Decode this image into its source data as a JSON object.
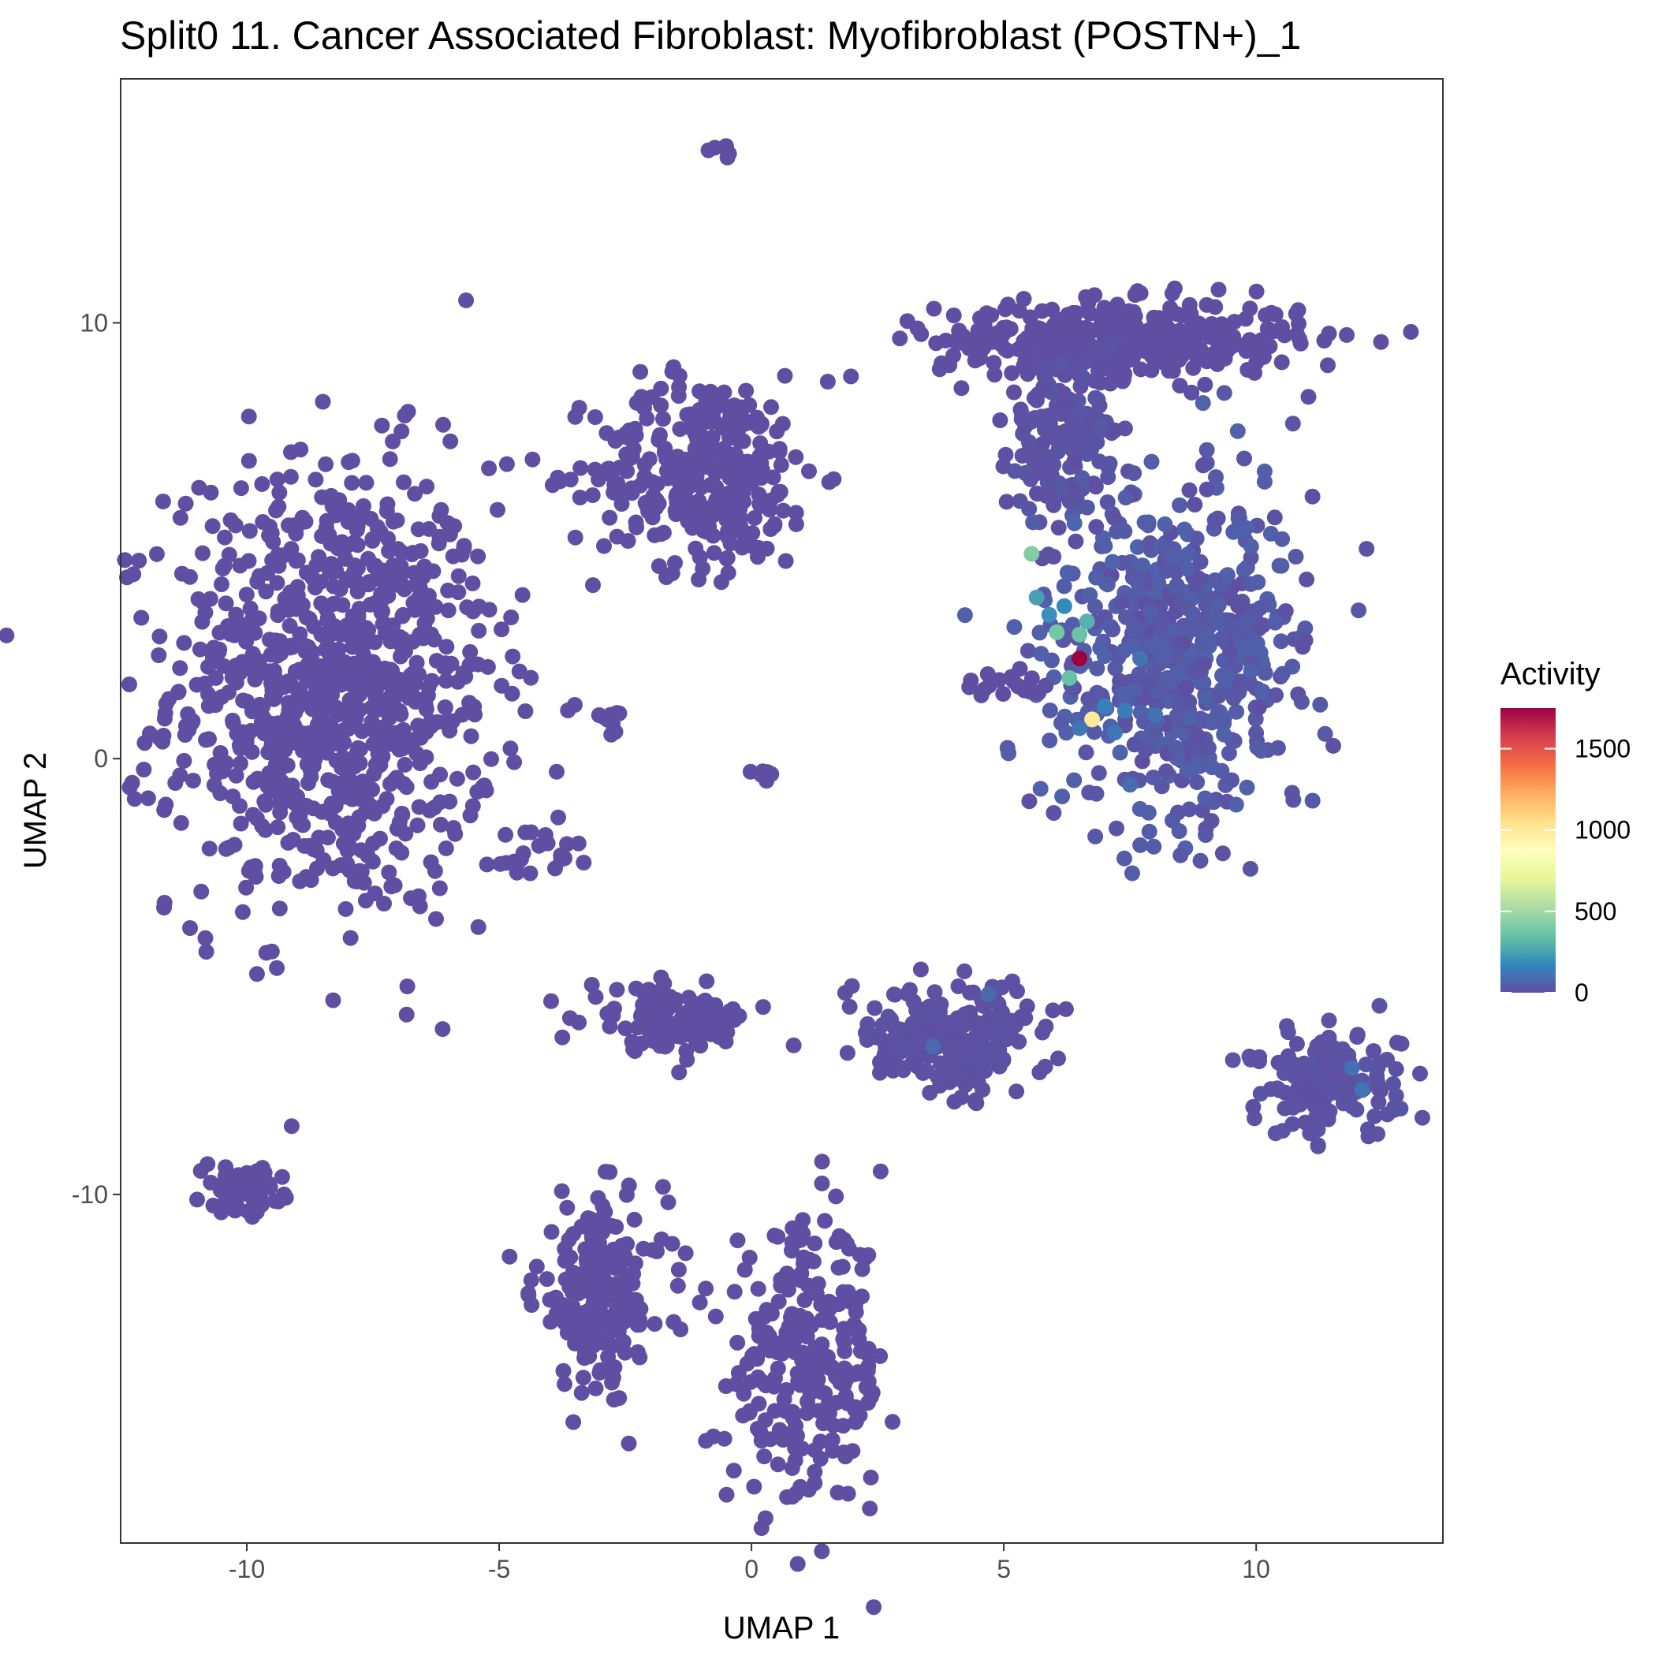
{
  "chart_data": {
    "type": "scatter",
    "title": "Split0 11. Cancer Associated Fibroblast: Myofibroblast (POSTN+)_1",
    "xlabel": "UMAP 1",
    "ylabel": "UMAP 2",
    "xlim": [
      -12.5,
      13.7
    ],
    "ylim": [
      -18,
      15.6
    ],
    "x_ticks": [
      -10,
      -5,
      0,
      5,
      10
    ],
    "x_tick_labels": [
      "-10",
      "-5",
      "0",
      "5",
      "10"
    ],
    "y_ticks": [
      -10,
      0,
      10
    ],
    "y_tick_labels": [
      "-10",
      "0",
      "10"
    ],
    "grid": false,
    "legend": {
      "title": "Activity",
      "placement": "right",
      "range": [
        0,
        1750
      ],
      "ticks": [
        0,
        500,
        1000,
        1500
      ],
      "tick_labels": [
        "0",
        "500",
        "1000",
        "1500"
      ],
      "colors": [
        "#5E4FA2",
        "#3288BD",
        "#66C2A5",
        "#ABDDA4",
        "#E6F598",
        "#FFFFBF",
        "#FEE08B",
        "#FDAE61",
        "#F46D43",
        "#D53E4F",
        "#9E0142"
      ]
    },
    "base_color": "#5E4FA2",
    "clusters": [
      {
        "name": "left-large",
        "cx": -8.3,
        "cy": 1.6,
        "sx": 1.6,
        "sy": 2.6,
        "n": 900,
        "value": 0
      },
      {
        "name": "top-center",
        "cx": -0.9,
        "cy": 6.6,
        "sx": 1.1,
        "sy": 1.1,
        "n": 320,
        "value": 0
      },
      {
        "name": "top-right",
        "cx": 7.3,
        "cy": 9.6,
        "sx": 1.8,
        "sy": 0.45,
        "n": 380,
        "value": 0
      },
      {
        "name": "right-stem",
        "cx": 6.1,
        "cy": 7.2,
        "sx": 0.55,
        "sy": 0.9,
        "n": 140,
        "value": 10
      },
      {
        "name": "right-large",
        "cx": 8.4,
        "cy": 2.4,
        "sx": 1.3,
        "sy": 1.9,
        "n": 620,
        "value": 30
      },
      {
        "name": "tiny-top",
        "cx": -0.55,
        "cy": 14.0,
        "sx": 0.12,
        "sy": 0.1,
        "n": 6,
        "value": 0
      },
      {
        "name": "lower-left-small",
        "cx": -10.1,
        "cy": -9.9,
        "sx": 0.4,
        "sy": 0.25,
        "n": 70,
        "value": 0
      },
      {
        "name": "bottom-left",
        "cx": -3.0,
        "cy": -12.3,
        "sx": 0.65,
        "sy": 1.1,
        "n": 200,
        "value": 0
      },
      {
        "name": "bottom-center",
        "cx": 1.1,
        "cy": -14.0,
        "sx": 0.8,
        "sy": 1.6,
        "n": 260,
        "value": 0
      },
      {
        "name": "mid-triangle",
        "cx": -1.6,
        "cy": -6.0,
        "sx": 0.8,
        "sy": 0.35,
        "n": 120,
        "value": 0
      },
      {
        "name": "mid-right",
        "cx": 4.0,
        "cy": -6.4,
        "sx": 0.9,
        "sy": 0.6,
        "n": 220,
        "value": 5
      },
      {
        "name": "far-right",
        "cx": 11.4,
        "cy": -7.5,
        "sx": 0.7,
        "sy": 0.6,
        "n": 170,
        "value": 10
      },
      {
        "name": "small-mid",
        "cx": 0.3,
        "cy": -0.35,
        "sx": 0.12,
        "sy": 0.1,
        "n": 8,
        "value": 0
      },
      {
        "name": "small-left-mid",
        "cx": -2.9,
        "cy": 0.9,
        "sx": 0.15,
        "sy": 0.2,
        "n": 10,
        "value": 0
      },
      {
        "name": "small-stream",
        "cx": -4.3,
        "cy": -2.2,
        "sx": 0.6,
        "sy": 0.25,
        "n": 22,
        "value": 0
      },
      {
        "name": "right-side-small",
        "cx": 5.0,
        "cy": 1.7,
        "sx": 0.4,
        "sy": 0.2,
        "n": 20,
        "value": 0
      }
    ],
    "highlighted_points": [
      {
        "x": 6.5,
        "y": 2.3,
        "value": 1750
      },
      {
        "x": 6.75,
        "y": 0.9,
        "value": 1000
      },
      {
        "x": 5.55,
        "y": 4.7,
        "value": 420
      },
      {
        "x": 6.5,
        "y": 2.85,
        "value": 360
      },
      {
        "x": 6.05,
        "y": 2.9,
        "value": 380
      },
      {
        "x": 6.3,
        "y": 1.85,
        "value": 350
      },
      {
        "x": 6.65,
        "y": 3.15,
        "value": 300
      },
      {
        "x": 5.65,
        "y": 3.7,
        "value": 250
      },
      {
        "x": 5.9,
        "y": 3.3,
        "value": 200
      },
      {
        "x": 6.2,
        "y": 3.5,
        "value": 180
      },
      {
        "x": 7.0,
        "y": 1.2,
        "value": 150
      },
      {
        "x": 7.4,
        "y": 1.1,
        "value": 140
      },
      {
        "x": 7.2,
        "y": 0.6,
        "value": 120
      },
      {
        "x": 6.5,
        "y": 0.7,
        "value": 120
      },
      {
        "x": 7.7,
        "y": 2.3,
        "value": 110
      },
      {
        "x": 8.0,
        "y": 1.0,
        "value": 100
      },
      {
        "x": 7.5,
        "y": -0.6,
        "value": 90
      },
      {
        "x": 12.1,
        "y": -7.6,
        "value": 110
      },
      {
        "x": 11.9,
        "y": -7.1,
        "value": 100
      },
      {
        "x": 3.6,
        "y": -6.6,
        "value": 80
      },
      {
        "x": 4.7,
        "y": -5.4,
        "value": 80
      },
      {
        "x": 6.4,
        "y": 5.4,
        "value": 70
      }
    ]
  }
}
